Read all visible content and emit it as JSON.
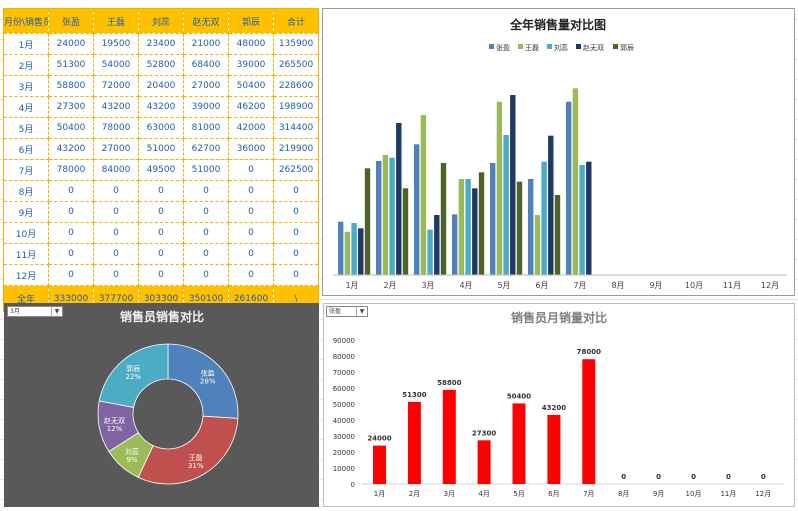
{
  "table": {
    "corner_header": "月份\\销售员",
    "columns": [
      "张盈",
      "王磊",
      "刘蕊",
      "赵无双",
      "郭辰",
      "合计"
    ],
    "rows": [
      {
        "month": "1月",
        "values": [
          "24000",
          "19500",
          "23400",
          "21000",
          "48000",
          "135900"
        ]
      },
      {
        "month": "2月",
        "values": [
          "51300",
          "54000",
          "52800",
          "68400",
          "39000",
          "265500"
        ]
      },
      {
        "month": "3月",
        "values": [
          "58800",
          "72000",
          "20400",
          "27000",
          "50400",
          "228600"
        ]
      },
      {
        "month": "4月",
        "values": [
          "27300",
          "43200",
          "43200",
          "39000",
          "46200",
          "198900"
        ]
      },
      {
        "month": "5月",
        "values": [
          "50400",
          "78000",
          "63000",
          "81000",
          "42000",
          "314400"
        ]
      },
      {
        "month": "6月",
        "values": [
          "43200",
          "27000",
          "51000",
          "62700",
          "36000",
          "219900"
        ]
      },
      {
        "month": "7月",
        "values": [
          "78000",
          "84000",
          "49500",
          "51000",
          "0",
          "262500"
        ]
      },
      {
        "month": "8月",
        "values": [
          "0",
          "0",
          "0",
          "0",
          "0",
          "0"
        ]
      },
      {
        "month": "9月",
        "values": [
          "0",
          "0",
          "0",
          "0",
          "0",
          "0"
        ]
      },
      {
        "month": "10月",
        "values": [
          "0",
          "0",
          "0",
          "0",
          "0",
          "0"
        ]
      },
      {
        "month": "11月",
        "values": [
          "0",
          "0",
          "0",
          "0",
          "0",
          "0"
        ]
      },
      {
        "month": "12月",
        "values": [
          "0",
          "0",
          "0",
          "0",
          "0",
          "0"
        ]
      }
    ],
    "total": {
      "label": "全年",
      "values": [
        "333000",
        "377700",
        "303300",
        "350100",
        "261600",
        "\\"
      ]
    }
  },
  "colors": {
    "header_fill": "#ffc000",
    "series": [
      "#4f81bd",
      "#9bbb59",
      "#4bacc6",
      "#1f3864",
      "#4f6228"
    ],
    "pie": [
      "#4f81bd",
      "#c0504d",
      "#9bbb59",
      "#8064a2",
      "#4bacc6"
    ],
    "bar_red": "#ff0000",
    "pie_panel_bg": "#595959"
  },
  "dropdowns": {
    "pie_month": "3月",
    "bar_person": "张盈"
  },
  "chart_data": [
    {
      "type": "bar",
      "title": "全年销售量对比图",
      "categories": [
        "1月",
        "2月",
        "3月",
        "4月",
        "5月",
        "6月",
        "7月",
        "8月",
        "9月",
        "10月",
        "11月",
        "12月"
      ],
      "series": [
        {
          "name": "张盈",
          "values": [
            24000,
            51300,
            58800,
            27300,
            50400,
            43200,
            78000,
            0,
            0,
            0,
            0,
            0
          ]
        },
        {
          "name": "王磊",
          "values": [
            19500,
            54000,
            72000,
            43200,
            78000,
            27000,
            84000,
            0,
            0,
            0,
            0,
            0
          ]
        },
        {
          "name": "刘蕊",
          "values": [
            23400,
            52800,
            20400,
            43200,
            63000,
            51000,
            49500,
            0,
            0,
            0,
            0,
            0
          ]
        },
        {
          "name": "赵无双",
          "values": [
            21000,
            68400,
            27000,
            39000,
            81000,
            62700,
            51000,
            0,
            0,
            0,
            0,
            0
          ]
        },
        {
          "name": "郭辰",
          "values": [
            48000,
            39000,
            50400,
            46200,
            42000,
            36000,
            0,
            0,
            0,
            0,
            0,
            0
          ]
        }
      ],
      "ylim": [
        0,
        90000
      ],
      "legend": "top",
      "grid": false
    },
    {
      "type": "pie",
      "title": "销售员销售对比",
      "labels": [
        "张盈",
        "王磊",
        "刘蕊",
        "赵无双",
        "郭辰"
      ],
      "values": [
        26,
        31,
        9,
        12,
        22
      ],
      "value_labels": [
        "26%",
        "31%",
        "9%",
        "12%",
        "22%"
      ]
    },
    {
      "type": "bar",
      "title": "销售员月销量对比",
      "categories": [
        "1月",
        "2月",
        "3月",
        "4月",
        "5月",
        "6月",
        "7月",
        "8月",
        "9月",
        "10月",
        "11月",
        "12月"
      ],
      "values": [
        24000,
        51300,
        58800,
        27300,
        50400,
        43200,
        78000,
        0,
        0,
        0,
        0,
        0
      ],
      "yticks": [
        0,
        10000,
        20000,
        30000,
        40000,
        50000,
        60000,
        70000,
        80000,
        90000
      ],
      "ylim": [
        0,
        90000
      ],
      "grid": false
    }
  ]
}
